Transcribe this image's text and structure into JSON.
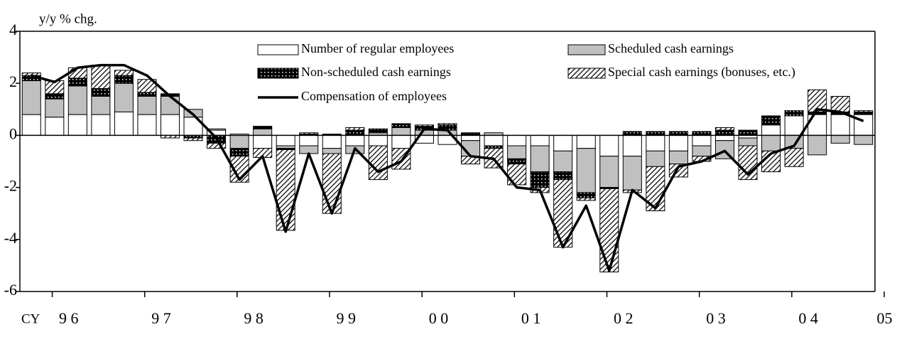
{
  "chart_data": {
    "type": "bar",
    "stacked": true,
    "y_label": "y/y % chg.",
    "x_label": "CY",
    "categories": [
      "9 6",
      null,
      null,
      null,
      "9 7",
      null,
      null,
      null,
      "9 8",
      null,
      null,
      null,
      "9 9",
      null,
      null,
      null,
      "0 0",
      null,
      null,
      null,
      "0 1",
      null,
      null,
      null,
      "0 2",
      null,
      null,
      null,
      "0 3",
      null,
      null,
      null,
      "0 4",
      null,
      null,
      null,
      "05"
    ],
    "ylim": [
      -6,
      4
    ],
    "yticks": [
      4,
      2,
      0,
      -2,
      -4,
      -6
    ],
    "series": [
      {
        "name": "Number of regular employees",
        "color": "#ffffff",
        "pattern": "solid",
        "values": [
          0.8,
          0.7,
          0.8,
          0.8,
          0.9,
          0.8,
          0.8,
          0.7,
          0.2,
          0.05,
          -0.5,
          -0.4,
          -0.4,
          -0.5,
          -0.4,
          -0.4,
          -0.5,
          -0.3,
          -0.35,
          -0.2,
          -0.4,
          -0.4,
          -0.4,
          -0.6,
          -0.5,
          -0.8,
          -0.8,
          -0.6,
          -0.6,
          -0.4,
          -0.2,
          -0.1,
          0.4,
          0.75,
          0.8,
          0.8,
          0.8
        ]
      },
      {
        "name": "Scheduled cash earnings",
        "color": "#c0c0c0",
        "pattern": "solid",
        "values": [
          1.3,
          0.7,
          1.1,
          0.7,
          1.1,
          0.7,
          0.7,
          0.3,
          0.05,
          -0.5,
          0.25,
          -0.1,
          -0.3,
          -0.2,
          -0.3,
          0.1,
          0.3,
          0.2,
          0.2,
          -0.6,
          0.1,
          -0.5,
          -1.0,
          -0.8,
          -1.7,
          -1.2,
          -1.3,
          -0.6,
          -0.5,
          -0.4,
          -0.7,
          -0.3,
          -0.6,
          -0.5,
          -0.75,
          -0.3,
          -0.35
        ]
      },
      {
        "name": "Non-scheduled cash earnings",
        "color": "#000000",
        "pattern": "grid",
        "values": [
          0.2,
          0.2,
          0.3,
          0.3,
          0.3,
          0.15,
          0.1,
          -0.1,
          -0.3,
          -0.3,
          0.1,
          -0.05,
          0.05,
          0.05,
          0.2,
          0.15,
          0.15,
          0.15,
          0.2,
          0.1,
          -0.1,
          -0.2,
          -0.6,
          -0.3,
          -0.2,
          -0.05,
          0.15,
          0.15,
          0.15,
          0.15,
          0.2,
          0.2,
          0.35,
          0.2,
          0.1,
          0.1,
          0.1
        ]
      },
      {
        "name": "Special cash earnings (bonuses, etc.)",
        "color": "#000000",
        "pattern": "diagonal",
        "values": [
          0.1,
          0.5,
          0.4,
          0.9,
          0.2,
          0.5,
          -0.1,
          -0.1,
          -0.2,
          -1.0,
          -0.35,
          -3.1,
          0.05,
          -2.3,
          0.1,
          -1.3,
          -0.8,
          0.05,
          0.05,
          -0.3,
          -0.75,
          -0.8,
          -0.2,
          -2.6,
          -0.1,
          -3.2,
          -0.1,
          -1.7,
          -0.5,
          -0.2,
          0.1,
          -1.3,
          -0.8,
          -0.7,
          0.85,
          0.6,
          0.05
        ]
      },
      {
        "name": "Compensation of employees",
        "color": "#000000",
        "type": "line",
        "values": [
          2.3,
          2.05,
          2.6,
          2.7,
          2.7,
          2.3,
          1.5,
          0.8,
          -0.1,
          -1.7,
          -0.8,
          -3.7,
          -0.7,
          -3.0,
          -0.5,
          -1.4,
          -1.0,
          0.25,
          0.2,
          -0.8,
          -0.9,
          -2.0,
          -2.1,
          -4.3,
          -2.7,
          -5.2,
          -2.1,
          -2.8,
          -1.2,
          -1.0,
          -0.6,
          -1.5,
          -0.7,
          -0.4,
          1.0,
          0.9,
          0.55
        ]
      }
    ]
  }
}
